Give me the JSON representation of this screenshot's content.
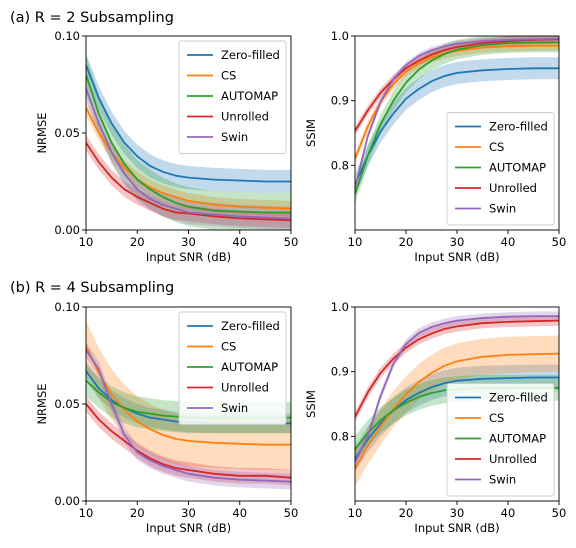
{
  "row_titles": [
    "(a) R = 2 Subsampling",
    "(b) R = 4 Subsampling"
  ],
  "colors": {
    "Zero-filled": "#1f77b4",
    "CS": "#ff7f0e",
    "AUTOMAP": "#2ca02c",
    "Unrolled": "#d62728",
    "Swin": "#9467bd"
  },
  "chart_data": [
    {
      "type": "line",
      "title": "",
      "xlabel": "Input SNR (dB)",
      "ylabel": "NRMSE",
      "xlim": [
        10,
        50
      ],
      "ylim": [
        0,
        0.1
      ],
      "xticks": [
        10,
        20,
        30,
        40,
        50
      ],
      "yticks": [
        0.0,
        0.05,
        0.1
      ],
      "ytick_labels": [
        "0.00",
        "0.05",
        "0.10"
      ],
      "legend": "top-right",
      "x": [
        10,
        12.5,
        15,
        17.5,
        20,
        22.5,
        25,
        27.5,
        30,
        35,
        40,
        45,
        50
      ],
      "series": [
        {
          "name": "Zero-filled",
          "values": [
            0.085,
            0.068,
            0.055,
            0.045,
            0.038,
            0.033,
            0.03,
            0.028,
            0.027,
            0.026,
            0.0255,
            0.025,
            0.025
          ],
          "band": 0.006
        },
        {
          "name": "CS",
          "values": [
            0.063,
            0.05,
            0.04,
            0.032,
            0.026,
            0.022,
            0.019,
            0.017,
            0.015,
            0.013,
            0.012,
            0.0115,
            0.011
          ],
          "band": 0.004
        },
        {
          "name": "AUTOMAP",
          "values": [
            0.08,
            0.06,
            0.045,
            0.034,
            0.026,
            0.021,
            0.017,
            0.014,
            0.012,
            0.01,
            0.0095,
            0.009,
            0.009
          ],
          "band": 0.01
        },
        {
          "name": "Unrolled",
          "values": [
            0.045,
            0.035,
            0.027,
            0.021,
            0.017,
            0.014,
            0.011,
            0.009,
            0.0085,
            0.007,
            0.006,
            0.0055,
            0.005
          ],
          "band": 0.004
        },
        {
          "name": "Swin",
          "values": [
            0.073,
            0.055,
            0.04,
            0.029,
            0.021,
            0.016,
            0.013,
            0.011,
            0.009,
            0.008,
            0.007,
            0.0065,
            0.006
          ],
          "band": 0.006
        }
      ]
    },
    {
      "type": "line",
      "title": "",
      "xlabel": "Input SNR (dB)",
      "ylabel": "SSIM",
      "xlim": [
        10,
        50
      ],
      "ylim": [
        0.7,
        1.0
      ],
      "xticks": [
        10,
        20,
        30,
        40,
        50
      ],
      "yticks": [
        0.8,
        0.9,
        1.0
      ],
      "ytick_labels": [
        "0.8",
        "0.9",
        "1.0"
      ],
      "legend": "bottom-right",
      "x": [
        10,
        12.5,
        15,
        17.5,
        20,
        22.5,
        25,
        27.5,
        30,
        35,
        40,
        45,
        50
      ],
      "series": [
        {
          "name": "Zero-filled",
          "values": [
            0.77,
            0.815,
            0.852,
            0.88,
            0.903,
            0.918,
            0.93,
            0.938,
            0.943,
            0.947,
            0.949,
            0.95,
            0.95
          ],
          "band": 0.017
        },
        {
          "name": "CS",
          "values": [
            0.81,
            0.86,
            0.898,
            0.925,
            0.945,
            0.958,
            0.967,
            0.973,
            0.977,
            0.982,
            0.984,
            0.985,
            0.985
          ],
          "band": 0.008
        },
        {
          "name": "AUTOMAP",
          "values": [
            0.755,
            0.815,
            0.863,
            0.9,
            0.928,
            0.948,
            0.962,
            0.972,
            0.979,
            0.986,
            0.989,
            0.99,
            0.99
          ],
          "band": 0.015
        },
        {
          "name": "Unrolled",
          "values": [
            0.853,
            0.885,
            0.912,
            0.933,
            0.95,
            0.962,
            0.971,
            0.978,
            0.983,
            0.989,
            0.992,
            0.994,
            0.995
          ],
          "band": 0.007
        },
        {
          "name": "Swin",
          "values": [
            0.765,
            0.845,
            0.898,
            0.933,
            0.955,
            0.969,
            0.978,
            0.984,
            0.988,
            0.992,
            0.994,
            0.995,
            0.996
          ],
          "band": 0.005
        }
      ]
    },
    {
      "type": "line",
      "title": "",
      "xlabel": "Input SNR (dB)",
      "ylabel": "NRMSE",
      "xlim": [
        10,
        50
      ],
      "ylim": [
        0,
        0.1
      ],
      "xticks": [
        10,
        20,
        30,
        40,
        50
      ],
      "yticks": [
        0.0,
        0.05,
        0.1
      ],
      "ytick_labels": [
        "0.00",
        "0.05",
        "0.10"
      ],
      "legend": "top-right",
      "x": [
        10,
        12.5,
        15,
        17.5,
        20,
        22.5,
        25,
        27.5,
        30,
        35,
        40,
        45,
        50
      ],
      "series": [
        {
          "name": "Zero-filled",
          "values": [
            0.067,
            0.058,
            0.052,
            0.048,
            0.045,
            0.043,
            0.042,
            0.041,
            0.0405,
            0.04,
            0.04,
            0.04,
            0.04
          ],
          "band": 0.005
        },
        {
          "name": "CS",
          "values": [
            0.08,
            0.066,
            0.055,
            0.047,
            0.041,
            0.037,
            0.034,
            0.032,
            0.031,
            0.03,
            0.0295,
            0.029,
            0.029
          ],
          "band": 0.013
        },
        {
          "name": "AUTOMAP",
          "values": [
            0.062,
            0.056,
            0.051,
            0.048,
            0.046,
            0.045,
            0.044,
            0.0435,
            0.043,
            0.043,
            0.043,
            0.043,
            0.043
          ],
          "band": 0.008
        },
        {
          "name": "Unrolled",
          "values": [
            0.05,
            0.042,
            0.036,
            0.031,
            0.026,
            0.022,
            0.019,
            0.017,
            0.016,
            0.014,
            0.013,
            0.013,
            0.012
          ],
          "band": 0.004
        },
        {
          "name": "Swin",
          "values": [
            0.078,
            0.068,
            0.05,
            0.034,
            0.025,
            0.021,
            0.018,
            0.016,
            0.014,
            0.012,
            0.011,
            0.0105,
            0.01
          ],
          "band": 0.004
        }
      ]
    },
    {
      "type": "line",
      "title": "",
      "xlabel": "Input SNR (dB)",
      "ylabel": "SSIM",
      "xlim": [
        10,
        50
      ],
      "ylim": [
        0.7,
        1.0
      ],
      "xticks": [
        10,
        20,
        30,
        40,
        50
      ],
      "yticks": [
        0.8,
        0.9,
        1.0
      ],
      "ytick_labels": [
        "0.8",
        "0.9",
        "1.0"
      ],
      "legend": "bottom-right",
      "x": [
        10,
        12.5,
        15,
        17.5,
        20,
        22.5,
        25,
        27.5,
        30,
        35,
        40,
        45,
        50
      ],
      "series": [
        {
          "name": "Zero-filled",
          "values": [
            0.765,
            0.795,
            0.82,
            0.84,
            0.856,
            0.867,
            0.876,
            0.882,
            0.886,
            0.889,
            0.89,
            0.891,
            0.891
          ],
          "band": 0.02
        },
        {
          "name": "CS",
          "values": [
            0.75,
            0.785,
            0.815,
            0.842,
            0.865,
            0.884,
            0.898,
            0.909,
            0.916,
            0.923,
            0.926,
            0.927,
            0.928
          ],
          "band": 0.028
        },
        {
          "name": "AUTOMAP",
          "values": [
            0.78,
            0.805,
            0.825,
            0.84,
            0.852,
            0.861,
            0.867,
            0.871,
            0.873,
            0.875,
            0.875,
            0.875,
            0.875
          ],
          "band": 0.02
        },
        {
          "name": "Unrolled",
          "values": [
            0.83,
            0.868,
            0.898,
            0.92,
            0.937,
            0.95,
            0.959,
            0.966,
            0.97,
            0.975,
            0.977,
            0.978,
            0.979
          ],
          "band": 0.008
        },
        {
          "name": "Swin",
          "values": [
            0.76,
            0.8,
            0.862,
            0.912,
            0.943,
            0.96,
            0.969,
            0.975,
            0.979,
            0.983,
            0.985,
            0.986,
            0.986
          ],
          "band": 0.007
        }
      ]
    }
  ]
}
